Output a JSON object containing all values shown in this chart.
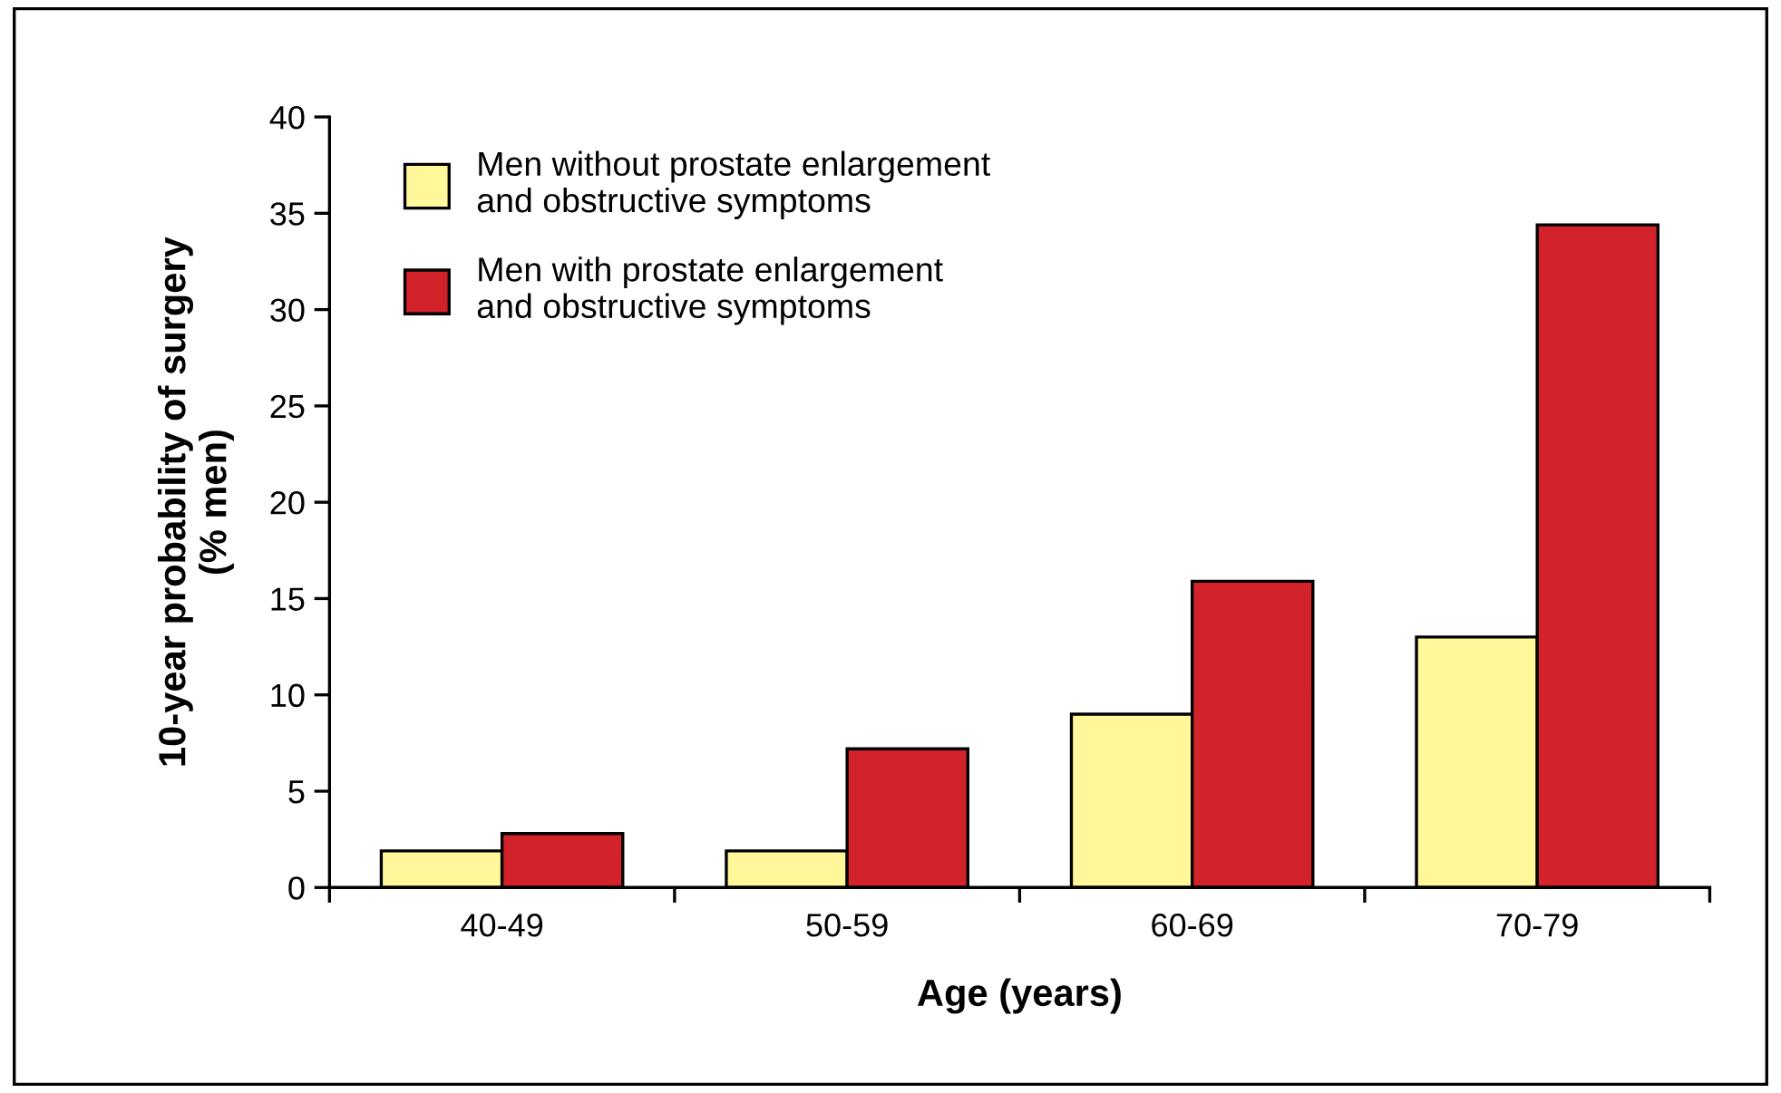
{
  "chart_data": {
    "type": "bar",
    "xlabel": "Age (years)",
    "ylabel": "10-year probability of surgery\n(% men)",
    "categories": [
      "40-49",
      "50-59",
      "60-69",
      "70-79"
    ],
    "series": [
      {
        "name": "Men without prostate enlargement\nand obstructive symptoms",
        "color": "#fff799",
        "values": [
          1.9,
          1.9,
          9.0,
          13.0
        ]
      },
      {
        "name": "Men with prostate enlargement\nand obstructive symptoms",
        "color": "#d2232a",
        "values": [
          2.8,
          7.2,
          15.9,
          34.4
        ]
      }
    ],
    "ylim": [
      0,
      40
    ],
    "yticks": [
      0,
      5,
      10,
      15,
      20,
      25,
      30,
      35,
      40
    ],
    "grid": false,
    "legend": "top left"
  }
}
